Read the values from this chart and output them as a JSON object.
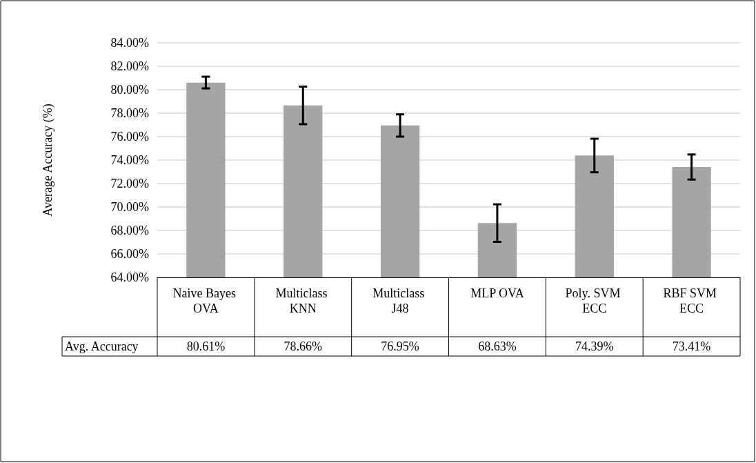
{
  "chart_data": {
    "type": "bar",
    "ylabel": "Average Accuracy (%)",
    "categories": [
      "Naive Bayes OVA",
      "Multiclass KNN",
      "Multiclass J48",
      "MLP OVA",
      "Poly. SVM ECC",
      "RBF SVM ECC"
    ],
    "series": [
      {
        "name": "Avg. Accuracy",
        "color": "#a5a5a5",
        "values": [
          80.61,
          78.66,
          76.95,
          68.63,
          74.39,
          73.41
        ],
        "errors": [
          0.5,
          1.6,
          0.95,
          1.6,
          1.43,
          1.07
        ],
        "value_labels": [
          "80.61%",
          "78.66%",
          "76.95%",
          "68.63%",
          "74.39%",
          "73.41%"
        ]
      }
    ],
    "ylim": [
      64,
      84
    ],
    "yticks": [
      {
        "value": 64,
        "label": "64.00%"
      },
      {
        "value": 66,
        "label": "66.00%"
      },
      {
        "value": 68,
        "label": "68.00%"
      },
      {
        "value": 70,
        "label": "70.00%"
      },
      {
        "value": 72,
        "label": "72.00%"
      },
      {
        "value": 74,
        "label": "74.00%"
      },
      {
        "value": 76,
        "label": "76.00%"
      },
      {
        "value": 78,
        "label": "78.00%"
      },
      {
        "value": 80,
        "label": "80.00%"
      },
      {
        "value": 82,
        "label": "82.00%"
      },
      {
        "value": 84,
        "label": "84.00%"
      }
    ],
    "grid": "y",
    "legend": false
  }
}
